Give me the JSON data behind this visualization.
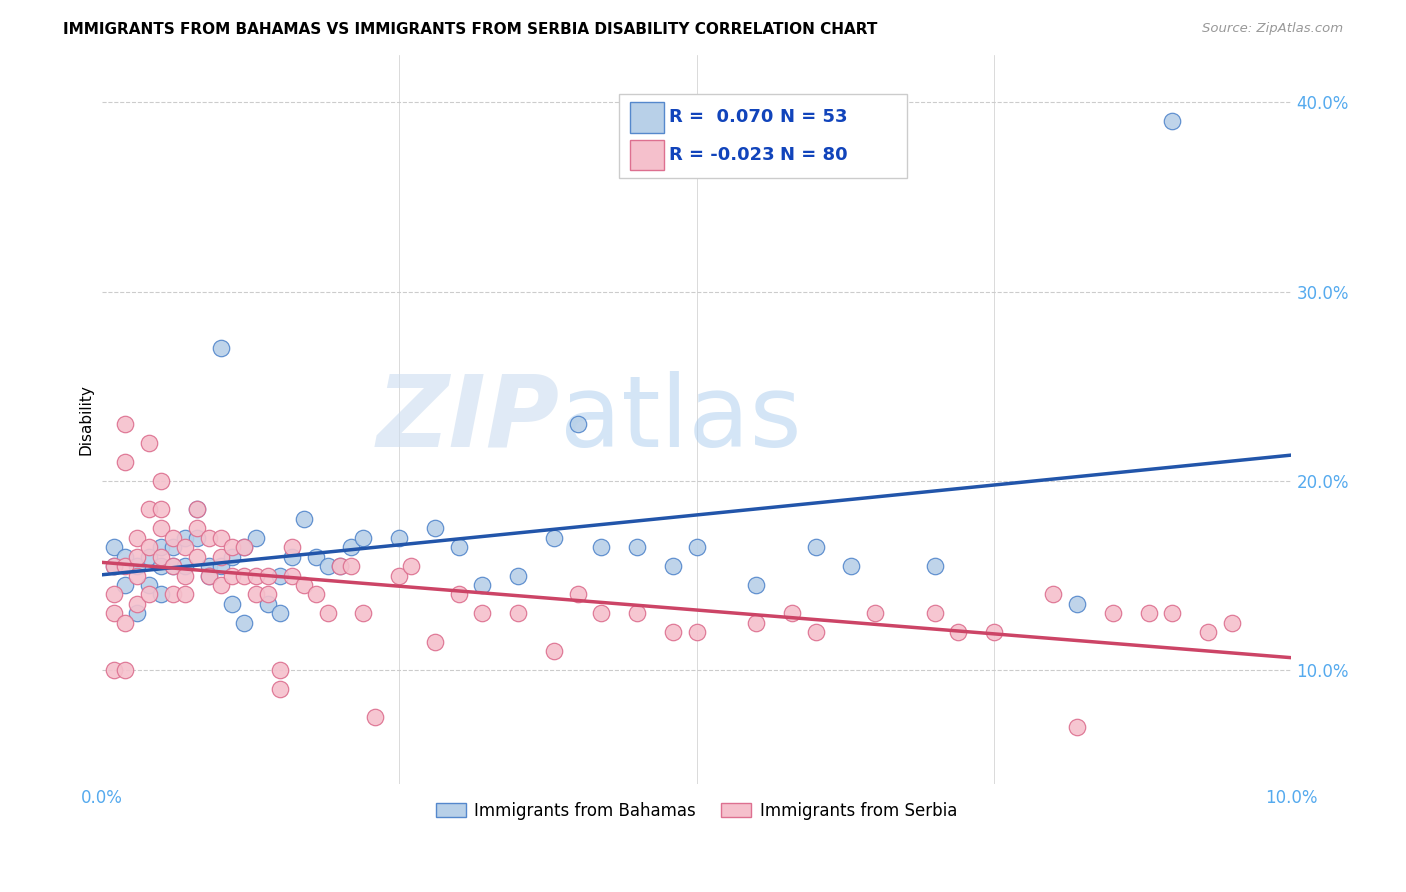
{
  "title": "IMMIGRANTS FROM BAHAMAS VS IMMIGRANTS FROM SERBIA DISABILITY CORRELATION CHART",
  "source": "Source: ZipAtlas.com",
  "ylabel": "Disability",
  "xlim": [
    0.0,
    0.1
  ],
  "ylim": [
    0.04,
    0.425
  ],
  "series": [
    {
      "name": "Immigrants from Bahamas",
      "R": 0.07,
      "N": 53,
      "fill_color": "#b8d0e8",
      "edge_color": "#5588cc",
      "line_color": "#2255aa",
      "x": [
        0.001,
        0.001,
        0.002,
        0.002,
        0.003,
        0.003,
        0.004,
        0.004,
        0.005,
        0.005,
        0.005,
        0.006,
        0.006,
        0.007,
        0.007,
        0.008,
        0.008,
        0.009,
        0.009,
        0.01,
        0.01,
        0.011,
        0.011,
        0.012,
        0.012,
        0.013,
        0.014,
        0.015,
        0.015,
        0.016,
        0.017,
        0.018,
        0.019,
        0.02,
        0.021,
        0.022,
        0.025,
        0.028,
        0.03,
        0.032,
        0.035,
        0.038,
        0.04,
        0.042,
        0.045,
        0.048,
        0.05,
        0.055,
        0.06,
        0.063,
        0.07,
        0.082,
        0.09
      ],
      "y": [
        0.155,
        0.165,
        0.145,
        0.16,
        0.13,
        0.155,
        0.16,
        0.145,
        0.165,
        0.155,
        0.14,
        0.165,
        0.155,
        0.155,
        0.17,
        0.17,
        0.185,
        0.155,
        0.15,
        0.155,
        0.27,
        0.135,
        0.16,
        0.125,
        0.165,
        0.17,
        0.135,
        0.13,
        0.15,
        0.16,
        0.18,
        0.16,
        0.155,
        0.155,
        0.165,
        0.17,
        0.17,
        0.175,
        0.165,
        0.145,
        0.15,
        0.17,
        0.23,
        0.165,
        0.165,
        0.155,
        0.165,
        0.145,
        0.165,
        0.155,
        0.155,
        0.135,
        0.39
      ]
    },
    {
      "name": "Immigrants from Serbia",
      "R": -0.023,
      "N": 80,
      "fill_color": "#f5c0cc",
      "edge_color": "#dd7090",
      "line_color": "#cc4466",
      "x": [
        0.001,
        0.001,
        0.001,
        0.001,
        0.002,
        0.002,
        0.002,
        0.002,
        0.002,
        0.003,
        0.003,
        0.003,
        0.003,
        0.004,
        0.004,
        0.004,
        0.004,
        0.005,
        0.005,
        0.005,
        0.005,
        0.006,
        0.006,
        0.006,
        0.007,
        0.007,
        0.007,
        0.008,
        0.008,
        0.008,
        0.009,
        0.009,
        0.01,
        0.01,
        0.01,
        0.011,
        0.011,
        0.012,
        0.012,
        0.013,
        0.013,
        0.014,
        0.014,
        0.015,
        0.015,
        0.016,
        0.016,
        0.017,
        0.018,
        0.019,
        0.02,
        0.021,
        0.022,
        0.023,
        0.025,
        0.026,
        0.028,
        0.03,
        0.032,
        0.035,
        0.038,
        0.04,
        0.042,
        0.045,
        0.048,
        0.05,
        0.055,
        0.058,
        0.06,
        0.065,
        0.07,
        0.072,
        0.075,
        0.08,
        0.082,
        0.085,
        0.088,
        0.09,
        0.093,
        0.095
      ],
      "y": [
        0.14,
        0.13,
        0.155,
        0.1,
        0.23,
        0.21,
        0.155,
        0.125,
        0.1,
        0.17,
        0.16,
        0.15,
        0.135,
        0.22,
        0.185,
        0.165,
        0.14,
        0.2,
        0.185,
        0.175,
        0.16,
        0.17,
        0.155,
        0.14,
        0.165,
        0.15,
        0.14,
        0.185,
        0.175,
        0.16,
        0.17,
        0.15,
        0.17,
        0.16,
        0.145,
        0.165,
        0.15,
        0.165,
        0.15,
        0.15,
        0.14,
        0.15,
        0.14,
        0.09,
        0.1,
        0.165,
        0.15,
        0.145,
        0.14,
        0.13,
        0.155,
        0.155,
        0.13,
        0.075,
        0.15,
        0.155,
        0.115,
        0.14,
        0.13,
        0.13,
        0.11,
        0.14,
        0.13,
        0.13,
        0.12,
        0.12,
        0.125,
        0.13,
        0.12,
        0.13,
        0.13,
        0.12,
        0.12,
        0.14,
        0.07,
        0.13,
        0.13,
        0.13,
        0.12,
        0.125
      ]
    }
  ],
  "watermark_zip": "ZIP",
  "watermark_atlas": "atlas",
  "background_color": "#ffffff",
  "grid_color": "#cccccc",
  "tick_color": "#55aaee",
  "legend_r_color": "#2255aa",
  "legend_n_color": "#2255aa"
}
